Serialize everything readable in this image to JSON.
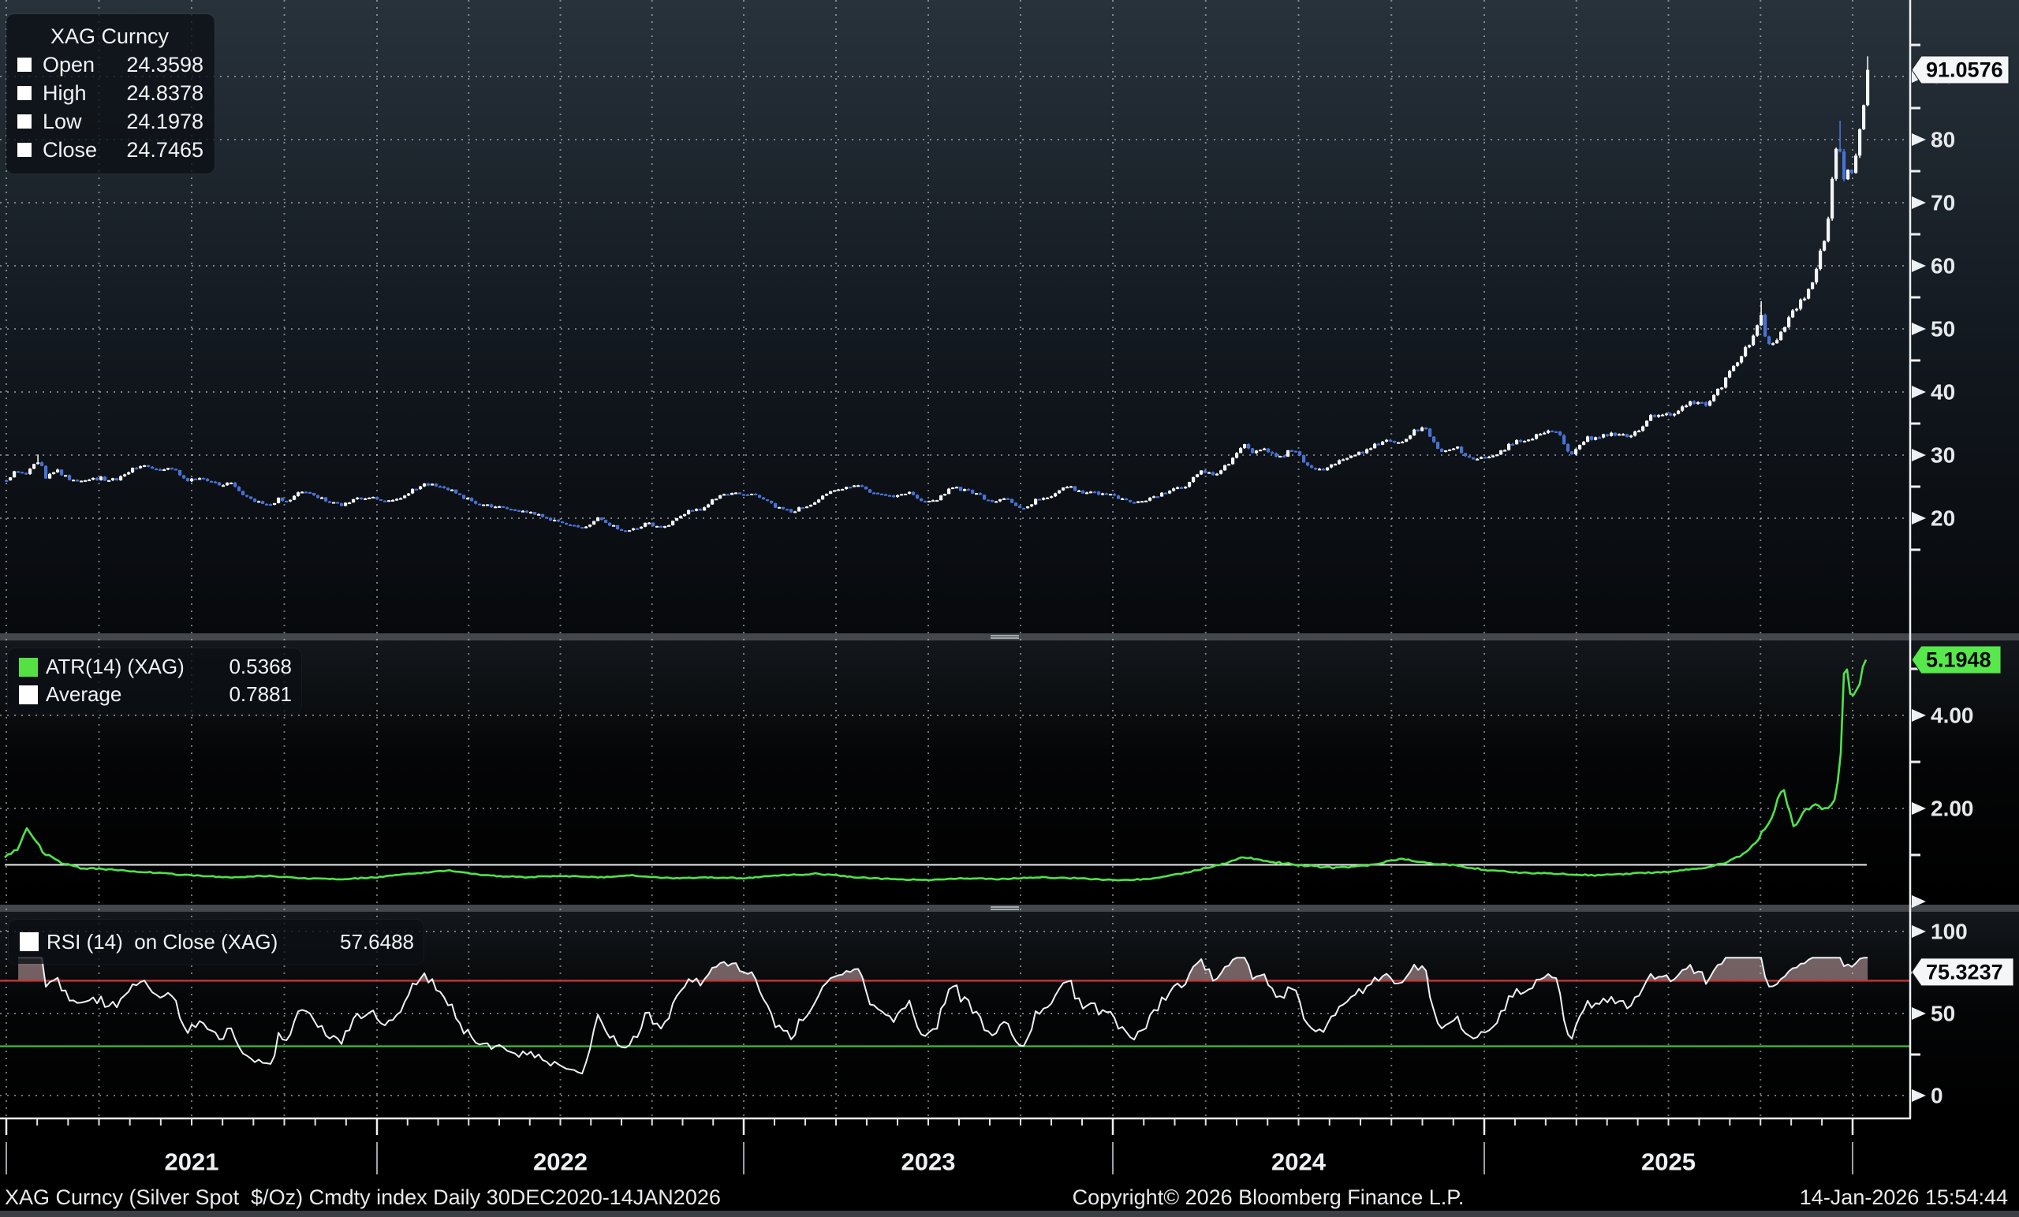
{
  "chart": {
    "ohlc_legend": {
      "title": "XAG Curncy",
      "rows": [
        {
          "label": "Open",
          "value": "24.3598"
        },
        {
          "label": "High",
          "value": "24.8378"
        },
        {
          "label": "Low",
          "value": "24.1978"
        },
        {
          "label": "Close",
          "value": "24.7465"
        }
      ]
    },
    "atr_legend": {
      "rows": [
        {
          "label": "ATR(14) (XAG)",
          "value": "0.5368",
          "swatch": "#55e043"
        },
        {
          "label": "Average",
          "value": "0.7881",
          "swatch": "#ffffff"
        }
      ]
    },
    "rsi_legend": {
      "label": "RSI (14)  on Close (XAG)",
      "value": "57.6488"
    }
  },
  "markers": {
    "price": "91.0576",
    "atr": "5.1948",
    "rsi": "75.3237"
  },
  "x_axis": {
    "years": [
      "2021",
      "2022",
      "2023",
      "2024",
      "2025"
    ]
  },
  "footer": {
    "left": "XAG Curncy (Silver Spot  $/Oz) Cmdty index Daily 30DEC2020-14JAN2026",
    "center": "Copyright© 2026 Bloomberg Finance L.P.",
    "right": "14-Jan-2026 15:54:44"
  },
  "colors": {
    "up": "#f3f5f7",
    "down": "#4872d4",
    "atr": "#4fe34a",
    "avg": "#e8ebee",
    "rsi": "#eef1f3",
    "rsi_upper_band": "#c4353a",
    "rsi_lower_band": "#3db53d",
    "grid": "rgba(222,228,233,0.5)",
    "axis": "#eef1f3",
    "marker_price_bg": "#f4f6f7",
    "marker_atr_bg": "#57e84b",
    "marker_rsi_bg": "#f4f6f7"
  },
  "chart_data": [
    {
      "type": "candlestick",
      "name": "XAG Curncy (Silver Spot $/Oz)",
      "x_unit": "decimal_year",
      "x_range": [
        2020.995,
        2026.038
      ],
      "ylim": [
        15,
        95
      ],
      "yticks": [
        90,
        80,
        70,
        60,
        50,
        40,
        30,
        20
      ],
      "last_price": 91.0576,
      "grid": true,
      "legend_position": "top-left",
      "anchors_close": [
        [
          2020.995,
          26.2
        ],
        [
          2021.02,
          27.4
        ],
        [
          2021.05,
          27.0
        ],
        [
          2021.085,
          29.3
        ],
        [
          2021.1,
          26.4
        ],
        [
          2021.13,
          27.6
        ],
        [
          2021.17,
          26.1
        ],
        [
          2021.21,
          25.9
        ],
        [
          2021.25,
          26.3
        ],
        [
          2021.29,
          26.0
        ],
        [
          2021.33,
          27.6
        ],
        [
          2021.38,
          28.3
        ],
        [
          2021.4,
          27.6
        ],
        [
          2021.44,
          28.0
        ],
        [
          2021.48,
          26.0
        ],
        [
          2021.52,
          26.3
        ],
        [
          2021.56,
          25.4
        ],
        [
          2021.6,
          25.6
        ],
        [
          2021.63,
          23.9
        ],
        [
          2021.67,
          22.7
        ],
        [
          2021.71,
          21.9
        ],
        [
          2021.73,
          23.1
        ],
        [
          2021.75,
          22.4
        ],
        [
          2021.79,
          24.4
        ],
        [
          2021.83,
          23.5
        ],
        [
          2021.87,
          22.4
        ],
        [
          2021.9,
          22.1
        ],
        [
          2021.94,
          23.0
        ],
        [
          2021.98,
          23.3
        ],
        [
          2022.02,
          22.5
        ],
        [
          2022.06,
          23.2
        ],
        [
          2022.08,
          23.9
        ],
        [
          2022.12,
          25.5
        ],
        [
          2022.16,
          25.1
        ],
        [
          2022.19,
          24.7
        ],
        [
          2022.23,
          23.3
        ],
        [
          2022.27,
          22.4
        ],
        [
          2022.31,
          21.9
        ],
        [
          2022.35,
          21.4
        ],
        [
          2022.4,
          21.0
        ],
        [
          2022.44,
          20.5
        ],
        [
          2022.48,
          19.6
        ],
        [
          2022.52,
          18.9
        ],
        [
          2022.56,
          18.4
        ],
        [
          2022.6,
          20.3
        ],
        [
          2022.63,
          19.0
        ],
        [
          2022.67,
          17.9
        ],
        [
          2022.71,
          18.6
        ],
        [
          2022.73,
          19.4
        ],
        [
          2022.77,
          18.4
        ],
        [
          2022.81,
          19.7
        ],
        [
          2022.85,
          21.4
        ],
        [
          2022.88,
          21.2
        ],
        [
          2022.92,
          23.3
        ],
        [
          2022.96,
          24.0
        ],
        [
          2023.0,
          23.9
        ],
        [
          2023.04,
          23.5
        ],
        [
          2023.08,
          21.9
        ],
        [
          2023.13,
          20.9
        ],
        [
          2023.15,
          21.7
        ],
        [
          2023.19,
          22.6
        ],
        [
          2023.23,
          24.2
        ],
        [
          2023.27,
          25.0
        ],
        [
          2023.31,
          25.4
        ],
        [
          2023.35,
          23.7
        ],
        [
          2023.4,
          23.4
        ],
        [
          2023.44,
          24.2
        ],
        [
          2023.48,
          22.7
        ],
        [
          2023.52,
          23.1
        ],
        [
          2023.56,
          25.0
        ],
        [
          2023.6,
          24.3
        ],
        [
          2023.63,
          23.8
        ],
        [
          2023.67,
          22.4
        ],
        [
          2023.71,
          23.3
        ],
        [
          2023.75,
          21.2
        ],
        [
          2023.79,
          23.0
        ],
        [
          2023.83,
          23.4
        ],
        [
          2023.87,
          25.3
        ],
        [
          2023.9,
          24.2
        ],
        [
          2023.94,
          24.0
        ],
        [
          2023.98,
          23.9
        ],
        [
          2024.02,
          22.9
        ],
        [
          2024.06,
          22.4
        ],
        [
          2024.1,
          23.1
        ],
        [
          2024.15,
          24.5
        ],
        [
          2024.19,
          25.0
        ],
        [
          2024.23,
          27.4
        ],
        [
          2024.27,
          26.9
        ],
        [
          2024.31,
          29.0
        ],
        [
          2024.35,
          31.6
        ],
        [
          2024.37,
          30.2
        ],
        [
          2024.4,
          31.4
        ],
        [
          2024.44,
          29.5
        ],
        [
          2024.48,
          30.9
        ],
        [
          2024.52,
          28.3
        ],
        [
          2024.56,
          27.7
        ],
        [
          2024.6,
          29.0
        ],
        [
          2024.65,
          29.9
        ],
        [
          2024.69,
          31.4
        ],
        [
          2024.73,
          32.2
        ],
        [
          2024.77,
          31.8
        ],
        [
          2024.81,
          33.9
        ],
        [
          2024.83,
          34.5
        ],
        [
          2024.85,
          33.0
        ],
        [
          2024.88,
          30.4
        ],
        [
          2024.92,
          31.3
        ],
        [
          2024.96,
          29.1
        ],
        [
          2025.0,
          29.6
        ],
        [
          2025.04,
          30.4
        ],
        [
          2025.08,
          32.3
        ],
        [
          2025.12,
          32.6
        ],
        [
          2025.16,
          33.9
        ],
        [
          2025.2,
          33.2
        ],
        [
          2025.23,
          29.9
        ],
        [
          2025.27,
          32.6
        ],
        [
          2025.31,
          32.9
        ],
        [
          2025.35,
          33.3
        ],
        [
          2025.4,
          33.1
        ],
        [
          2025.44,
          35.9
        ],
        [
          2025.48,
          36.3
        ],
        [
          2025.52,
          36.9
        ],
        [
          2025.56,
          38.3
        ],
        [
          2025.6,
          38.0
        ],
        [
          2025.64,
          40.9
        ],
        [
          2025.68,
          44.6
        ],
        [
          2025.72,
          48.0
        ],
        [
          2025.745,
          52.5
        ],
        [
          2025.76,
          48.5
        ],
        [
          2025.78,
          47.2
        ],
        [
          2025.8,
          49.6
        ],
        [
          2025.83,
          52.6
        ],
        [
          2025.855,
          54.2
        ],
        [
          2025.88,
          56.6
        ],
        [
          2025.9,
          60.6
        ],
        [
          2025.92,
          64.2
        ],
        [
          2025.935,
          70.5
        ],
        [
          2025.95,
          78.5
        ],
        [
          2025.958,
          80.5
        ],
        [
          2025.965,
          76.0
        ],
        [
          2025.972,
          73.5
        ],
        [
          2025.98,
          75.2
        ],
        [
          2025.99,
          74.2
        ],
        [
          2026.0,
          76.5
        ],
        [
          2026.01,
          79.5
        ],
        [
          2026.02,
          84.0
        ],
        [
          2026.03,
          88.0
        ],
        [
          2026.038,
          91.0576
        ]
      ]
    },
    {
      "type": "line",
      "name": "ATR(14) (XAG)",
      "ylim": [
        0,
        5.6
      ],
      "yticks": [
        4,
        2
      ],
      "ytick_labels": [
        "4.00",
        "2.00"
      ],
      "average": 0.7881,
      "last": 5.1948,
      "anchors": [
        [
          2020.995,
          0.95
        ],
        [
          2021.03,
          1.12
        ],
        [
          2021.055,
          1.58
        ],
        [
          2021.08,
          1.3
        ],
        [
          2021.1,
          1.05
        ],
        [
          2021.15,
          0.82
        ],
        [
          2021.2,
          0.72
        ],
        [
          2021.3,
          0.68
        ],
        [
          2021.4,
          0.62
        ],
        [
          2021.5,
          0.56
        ],
        [
          2021.6,
          0.52
        ],
        [
          2021.7,
          0.55
        ],
        [
          2021.8,
          0.5
        ],
        [
          2021.9,
          0.48
        ],
        [
          2022.0,
          0.52
        ],
        [
          2022.1,
          0.6
        ],
        [
          2022.2,
          0.66
        ],
        [
          2022.3,
          0.56
        ],
        [
          2022.4,
          0.52
        ],
        [
          2022.5,
          0.55
        ],
        [
          2022.6,
          0.52
        ],
        [
          2022.7,
          0.56
        ],
        [
          2022.8,
          0.5
        ],
        [
          2022.9,
          0.52
        ],
        [
          2023.0,
          0.5
        ],
        [
          2023.1,
          0.56
        ],
        [
          2023.2,
          0.6
        ],
        [
          2023.3,
          0.52
        ],
        [
          2023.4,
          0.48
        ],
        [
          2023.5,
          0.46
        ],
        [
          2023.6,
          0.5
        ],
        [
          2023.7,
          0.48
        ],
        [
          2023.8,
          0.52
        ],
        [
          2023.9,
          0.5
        ],
        [
          2024.0,
          0.46
        ],
        [
          2024.1,
          0.48
        ],
        [
          2024.2,
          0.62
        ],
        [
          2024.3,
          0.82
        ],
        [
          2024.35,
          0.96
        ],
        [
          2024.4,
          0.88
        ],
        [
          2024.5,
          0.78
        ],
        [
          2024.6,
          0.72
        ],
        [
          2024.7,
          0.78
        ],
        [
          2024.77,
          0.92
        ],
        [
          2024.85,
          0.82
        ],
        [
          2024.92,
          0.78
        ],
        [
          2025.0,
          0.68
        ],
        [
          2025.1,
          0.62
        ],
        [
          2025.2,
          0.6
        ],
        [
          2025.3,
          0.56
        ],
        [
          2025.4,
          0.6
        ],
        [
          2025.5,
          0.64
        ],
        [
          2025.6,
          0.72
        ],
        [
          2025.66,
          0.85
        ],
        [
          2025.7,
          1.0
        ],
        [
          2025.74,
          1.3
        ],
        [
          2025.78,
          1.8
        ],
        [
          2025.81,
          2.46
        ],
        [
          2025.84,
          1.6
        ],
        [
          2025.87,
          1.95
        ],
        [
          2025.9,
          2.05
        ],
        [
          2025.93,
          1.95
        ],
        [
          2025.955,
          2.2
        ],
        [
          2025.968,
          3.2
        ],
        [
          2025.978,
          5.1
        ],
        [
          2025.985,
          4.95
        ],
        [
          2025.995,
          4.35
        ],
        [
          2026.01,
          4.55
        ],
        [
          2026.025,
          4.9
        ],
        [
          2026.038,
          5.1948
        ]
      ]
    },
    {
      "type": "line",
      "name": "RSI (14) on Close (XAG)",
      "ylim": [
        0,
        100
      ],
      "yticks": [
        100,
        50,
        0
      ],
      "bands": {
        "overbought": 70,
        "oversold": 30
      },
      "last": 75.3237,
      "legend_value": 57.6488,
      "note": "RSI(14) series derived from the close series shown in the top panel"
    }
  ]
}
